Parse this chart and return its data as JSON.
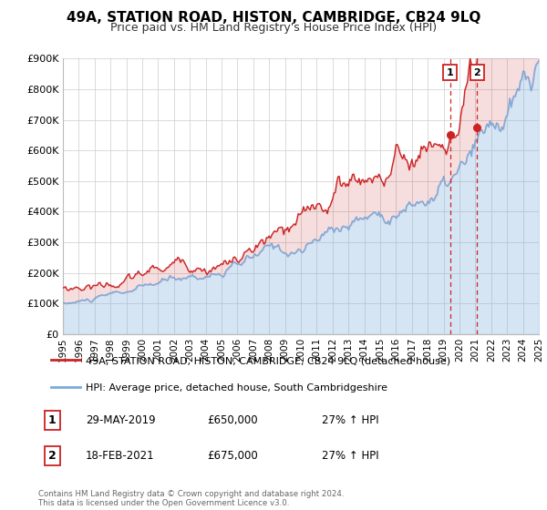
{
  "title": "49A, STATION ROAD, HISTON, CAMBRIDGE, CB24 9LQ",
  "subtitle": "Price paid vs. HM Land Registry's House Price Index (HPI)",
  "xlim": [
    1995,
    2025
  ],
  "ylim": [
    0,
    900000
  ],
  "yticks": [
    0,
    100000,
    200000,
    300000,
    400000,
    500000,
    600000,
    700000,
    800000,
    900000
  ],
  "ytick_labels": [
    "£0",
    "£100K",
    "£200K",
    "£300K",
    "£400K",
    "£500K",
    "£600K",
    "£700K",
    "£800K",
    "£900K"
  ],
  "xticks": [
    1995,
    1996,
    1997,
    1998,
    1999,
    2000,
    2001,
    2002,
    2003,
    2004,
    2005,
    2006,
    2007,
    2008,
    2009,
    2010,
    2011,
    2012,
    2013,
    2014,
    2015,
    2016,
    2017,
    2018,
    2019,
    2020,
    2021,
    2022,
    2023,
    2024,
    2025
  ],
  "hpi_color": "#7aabdc",
  "price_color": "#cc2222",
  "marker_fill": "#cc2222",
  "vline_color": "#cc2222",
  "background_color": "#ffffff",
  "grid_color": "#cccccc",
  "legend_label_red": "49A, STATION ROAD, HISTON, CAMBRIDGE, CB24 9LQ (detached house)",
  "legend_label_blue": "HPI: Average price, detached house, South Cambridgeshire",
  "transaction1_date": "29-MAY-2019",
  "transaction1_price": "£650,000",
  "transaction1_hpi": "27% ↑ HPI",
  "transaction1_year": 2019.41,
  "transaction1_value": 650000,
  "transaction2_date": "18-FEB-2021",
  "transaction2_price": "£675,000",
  "transaction2_hpi": "27% ↑ HPI",
  "transaction2_year": 2021.12,
  "transaction2_value": 675000,
  "footer": "Contains HM Land Registry data © Crown copyright and database right 2024.\nThis data is licensed under the Open Government Licence v3.0.",
  "hpi_fill_alpha": 0.3,
  "price_fill_alpha": 0.15
}
